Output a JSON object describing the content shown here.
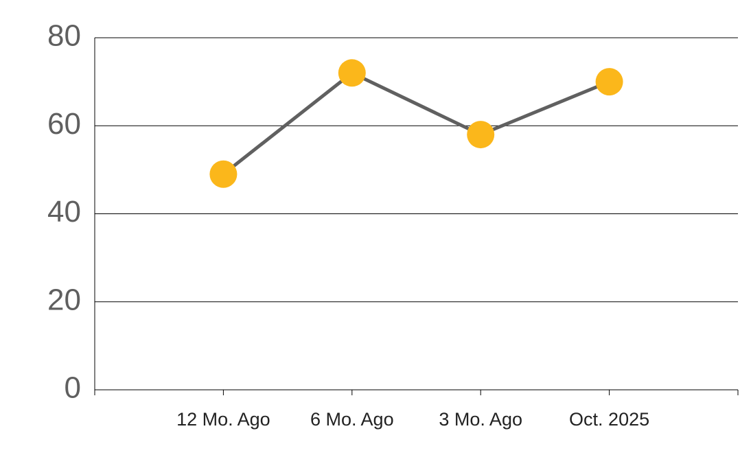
{
  "chart_data": {
    "type": "line",
    "categories": [
      "12 Mo. Ago",
      "6 Mo. Ago",
      "3 Mo. Ago",
      "Oct. 2025"
    ],
    "series": [
      {
        "color": "#fbb71b",
        "line_color": "#606060",
        "values": [
          49,
          72,
          58,
          70
        ]
      }
    ],
    "ylim": [
      0,
      80
    ],
    "yticks": [
      0,
      20,
      40,
      60,
      80
    ],
    "grid": true
  }
}
